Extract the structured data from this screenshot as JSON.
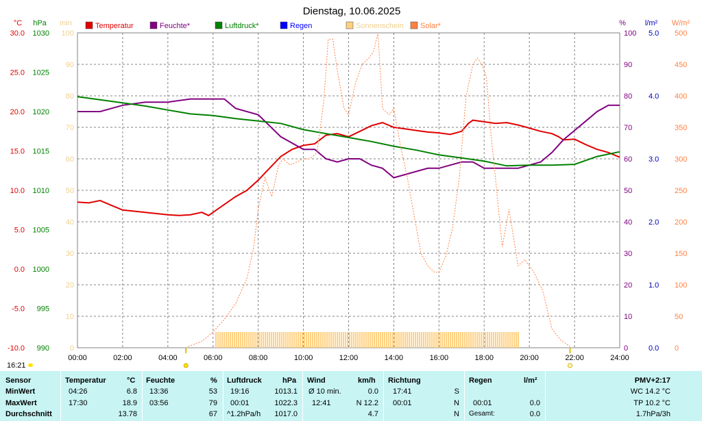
{
  "chart_data": {
    "type": "line",
    "title": "Dienstag, 10.06.2025",
    "x_ticks": [
      "00:00",
      "02:00",
      "04:00",
      "06:00",
      "08:00",
      "10:00",
      "12:00",
      "14:00",
      "16:00",
      "18:00",
      "20:00",
      "22:00",
      "24:00"
    ],
    "grid": true,
    "legend_placement": "top",
    "legend": [
      {
        "name": "Temperatur",
        "color": "#e00000"
      },
      {
        "name": "Feuchte*",
        "color": "#800080"
      },
      {
        "name": "Luftdruck*",
        "color": "#008000"
      },
      {
        "name": "Regen",
        "color": "#0000ff"
      },
      {
        "name": "Sonnenschein",
        "color": "#ffd080"
      },
      {
        "name": "Solar*",
        "color": "#ff8040"
      }
    ],
    "axes": {
      "temp": {
        "unit": "°C",
        "ticks": [
          "30.0",
          "25.0",
          "20.0",
          "15.0",
          "10.0",
          "5.0",
          "0.0",
          "-5.0",
          "-10.0"
        ],
        "range": [
          -10,
          30
        ],
        "color": "#e00000"
      },
      "pressure": {
        "unit": "hPa",
        "ticks": [
          "1030",
          "1025",
          "1020",
          "1015",
          "1010",
          "1005",
          "1000",
          "995",
          "990"
        ],
        "range": [
          990,
          1030
        ],
        "color": "#008000"
      },
      "minutes": {
        "unit": "min",
        "ticks": [
          "100",
          "90",
          "80",
          "70",
          "60",
          "50",
          "40",
          "30",
          "20",
          "10",
          "0"
        ],
        "range": [
          0,
          100
        ],
        "color": "#f0d090"
      },
      "humidity": {
        "unit": "%",
        "ticks": [
          "100",
          "90",
          "80",
          "70",
          "60",
          "50",
          "40",
          "30",
          "20",
          "10",
          "0"
        ],
        "range": [
          0,
          100
        ],
        "color": "#800080"
      },
      "rain": {
        "unit": "l/m²",
        "ticks": [
          "5.0",
          "4.0",
          "3.0",
          "2.0",
          "1.0",
          "0.0"
        ],
        "range": [
          0,
          5
        ],
        "color": "#0000c0"
      },
      "solar": {
        "unit": "W/m²",
        "ticks": [
          "500",
          "450",
          "400",
          "350",
          "300",
          "250",
          "200",
          "150",
          "100",
          "50",
          "0"
        ],
        "range": [
          0,
          500
        ],
        "color": "#ff8040"
      }
    },
    "series": [
      {
        "name": "Temperatur",
        "axis": "temp",
        "color": "#e00000",
        "x": [
          0,
          0.5,
          1,
          1.5,
          2,
          3,
          4,
          4.5,
          5,
          5.5,
          5.8,
          6.3,
          7,
          7.5,
          8,
          8.5,
          9,
          9.5,
          10,
          10.5,
          11,
          11.5,
          12,
          12.5,
          13,
          13.5,
          14,
          14.5,
          15,
          15.5,
          16,
          16.5,
          17,
          17.3,
          17.5,
          18,
          18.5,
          19,
          19.5,
          20,
          20.5,
          21,
          21.3,
          21.5,
          22,
          22.5,
          23,
          23.5,
          24
        ],
        "values": [
          8.5,
          8.4,
          8.7,
          8.1,
          7.5,
          7.2,
          6.9,
          6.8,
          6.9,
          7.2,
          6.8,
          7.8,
          9.2,
          10.0,
          11.3,
          12.8,
          14.3,
          15.2,
          15.7,
          15.9,
          17.0,
          17.2,
          16.8,
          17.5,
          18.2,
          18.6,
          18.0,
          17.8,
          17.6,
          17.4,
          17.3,
          17.1,
          17.5,
          18.5,
          18.9,
          18.7,
          18.5,
          18.6,
          18.3,
          17.9,
          17.5,
          17.2,
          16.8,
          16.4,
          16.5,
          15.8,
          15.2,
          14.8,
          14.2
        ]
      },
      {
        "name": "Feuchte*",
        "axis": "humidity",
        "color": "#800080",
        "x": [
          0,
          1,
          2,
          3,
          4,
          5,
          6,
          6.5,
          7,
          8,
          9,
          10,
          10.5,
          11,
          11.5,
          12,
          12.5,
          13,
          13.5,
          14,
          14.5,
          15,
          15.5,
          16,
          16.5,
          17,
          17.5,
          18,
          18.5,
          19,
          19.5,
          20,
          20.5,
          21,
          21.5,
          22,
          22.5,
          23,
          23.5,
          24
        ],
        "values": [
          75,
          75,
          77,
          78,
          78,
          79,
          79,
          79,
          76,
          74,
          67,
          63,
          63,
          60,
          59,
          60,
          60,
          58,
          57,
          54,
          55,
          56,
          57,
          57,
          58,
          59,
          59,
          57,
          57,
          57,
          57,
          58,
          59,
          62,
          66,
          69,
          72,
          75,
          77,
          77
        ]
      },
      {
        "name": "Luftdruck*",
        "axis": "pressure",
        "color": "#008000",
        "x": [
          0,
          1,
          2,
          3,
          4,
          5,
          6,
          7,
          8,
          9,
          10,
          11,
          12,
          13,
          14,
          15,
          16,
          17,
          18,
          19,
          20,
          21,
          22,
          23,
          24
        ],
        "values": [
          1021.9,
          1021.5,
          1021.1,
          1020.7,
          1020.2,
          1019.7,
          1019.5,
          1019.1,
          1018.8,
          1018.5,
          1017.7,
          1017.2,
          1016.7,
          1016.2,
          1015.6,
          1015.1,
          1014.5,
          1014.1,
          1013.7,
          1013.1,
          1013.2,
          1013.2,
          1013.3,
          1014.3,
          1014.9
        ]
      },
      {
        "name": "Solar*",
        "axis": "solar",
        "color": "#ff8040",
        "x": [
          4.9,
          5.5,
          6,
          6.5,
          7,
          7.5,
          7.8,
          8,
          8.3,
          8.6,
          8.9,
          9.1,
          9.4,
          9.7,
          10,
          10.3,
          10.6,
          10.9,
          11.1,
          11.3,
          11.5,
          11.8,
          12,
          12.3,
          12.6,
          12.9,
          13.1,
          13.3,
          13.5,
          13.8,
          14,
          14.3,
          14.6,
          14.9,
          15.2,
          15.5,
          15.8,
          16,
          16.3,
          16.6,
          16.9,
          17.2,
          17.5,
          17.7,
          17.9,
          18.1,
          18.3,
          18.5,
          18.8,
          19.1,
          19.5,
          19.8,
          20.2,
          20.6,
          21,
          21.4,
          21.8
        ],
        "values": [
          2,
          10,
          25,
          45,
          70,
          110,
          160,
          220,
          270,
          240,
          290,
          300,
          290,
          295,
          300,
          300,
          310,
          390,
          490,
          490,
          440,
          380,
          370,
          420,
          450,
          460,
          470,
          500,
          380,
          370,
          380,
          320,
          270,
          210,
          150,
          130,
          120,
          120,
          145,
          190,
          270,
          400,
          450,
          460,
          450,
          430,
          340,
          270,
          160,
          220,
          130,
          140,
          120,
          90,
          30,
          12,
          2
        ]
      },
      {
        "name": "Sonnenschein",
        "axis": "minutes",
        "color": "#ffd080",
        "x": [
          6.1,
          19.5
        ],
        "values": [
          5,
          5
        ]
      }
    ],
    "markers": {
      "sunrise": "4.8",
      "sunset": "21.8"
    }
  },
  "time_label": "16:21",
  "table": {
    "sensor": [
      "Sensor",
      "MinWert",
      "MaxWert",
      "Durchschnitt"
    ],
    "temp": {
      "header": "Temperatur",
      "unit": "°C",
      "min_time": "04:26",
      "min": "6.8",
      "max_time": "17:30",
      "max": "18.9",
      "avg": "13.78"
    },
    "hum": {
      "header": "Feuchte",
      "unit": "%",
      "min_time": "13:36",
      "min": "53",
      "max_time": "03:56",
      "max": "79",
      "avg": "67"
    },
    "press": {
      "header": "Luftdruck",
      "unit": "hPa",
      "min_time": "19:16",
      "min": "1013.1",
      "max_time": "00:01",
      "max": "1022.3",
      "avg_label": "^1.2hPa/h",
      "avg": "1017.0"
    },
    "wind": {
      "header": "Wind",
      "unit": "km/h",
      "row1_label": "Ø 10 min.",
      "row1": "0.0",
      "row2_time": "12:41",
      "row2": "N 12.2",
      "avg": "4.7"
    },
    "dir": {
      "header": "Richtung",
      "row1_time": "17:41",
      "row1": "S",
      "row2_time": "00:01",
      "row2": "N",
      "avg": "N"
    },
    "rain": {
      "header": "Regen",
      "unit": "l/m²",
      "row2_time": "00:01",
      "row2": "0.0",
      "total_label": "Gesamt:",
      "total": "0.0"
    },
    "pmv": {
      "header": "PMV+2:17",
      "wc": "WC 14.2 °C",
      "tp": "TP 10.2 °C",
      "trend": "1.7hPa/3h"
    }
  }
}
